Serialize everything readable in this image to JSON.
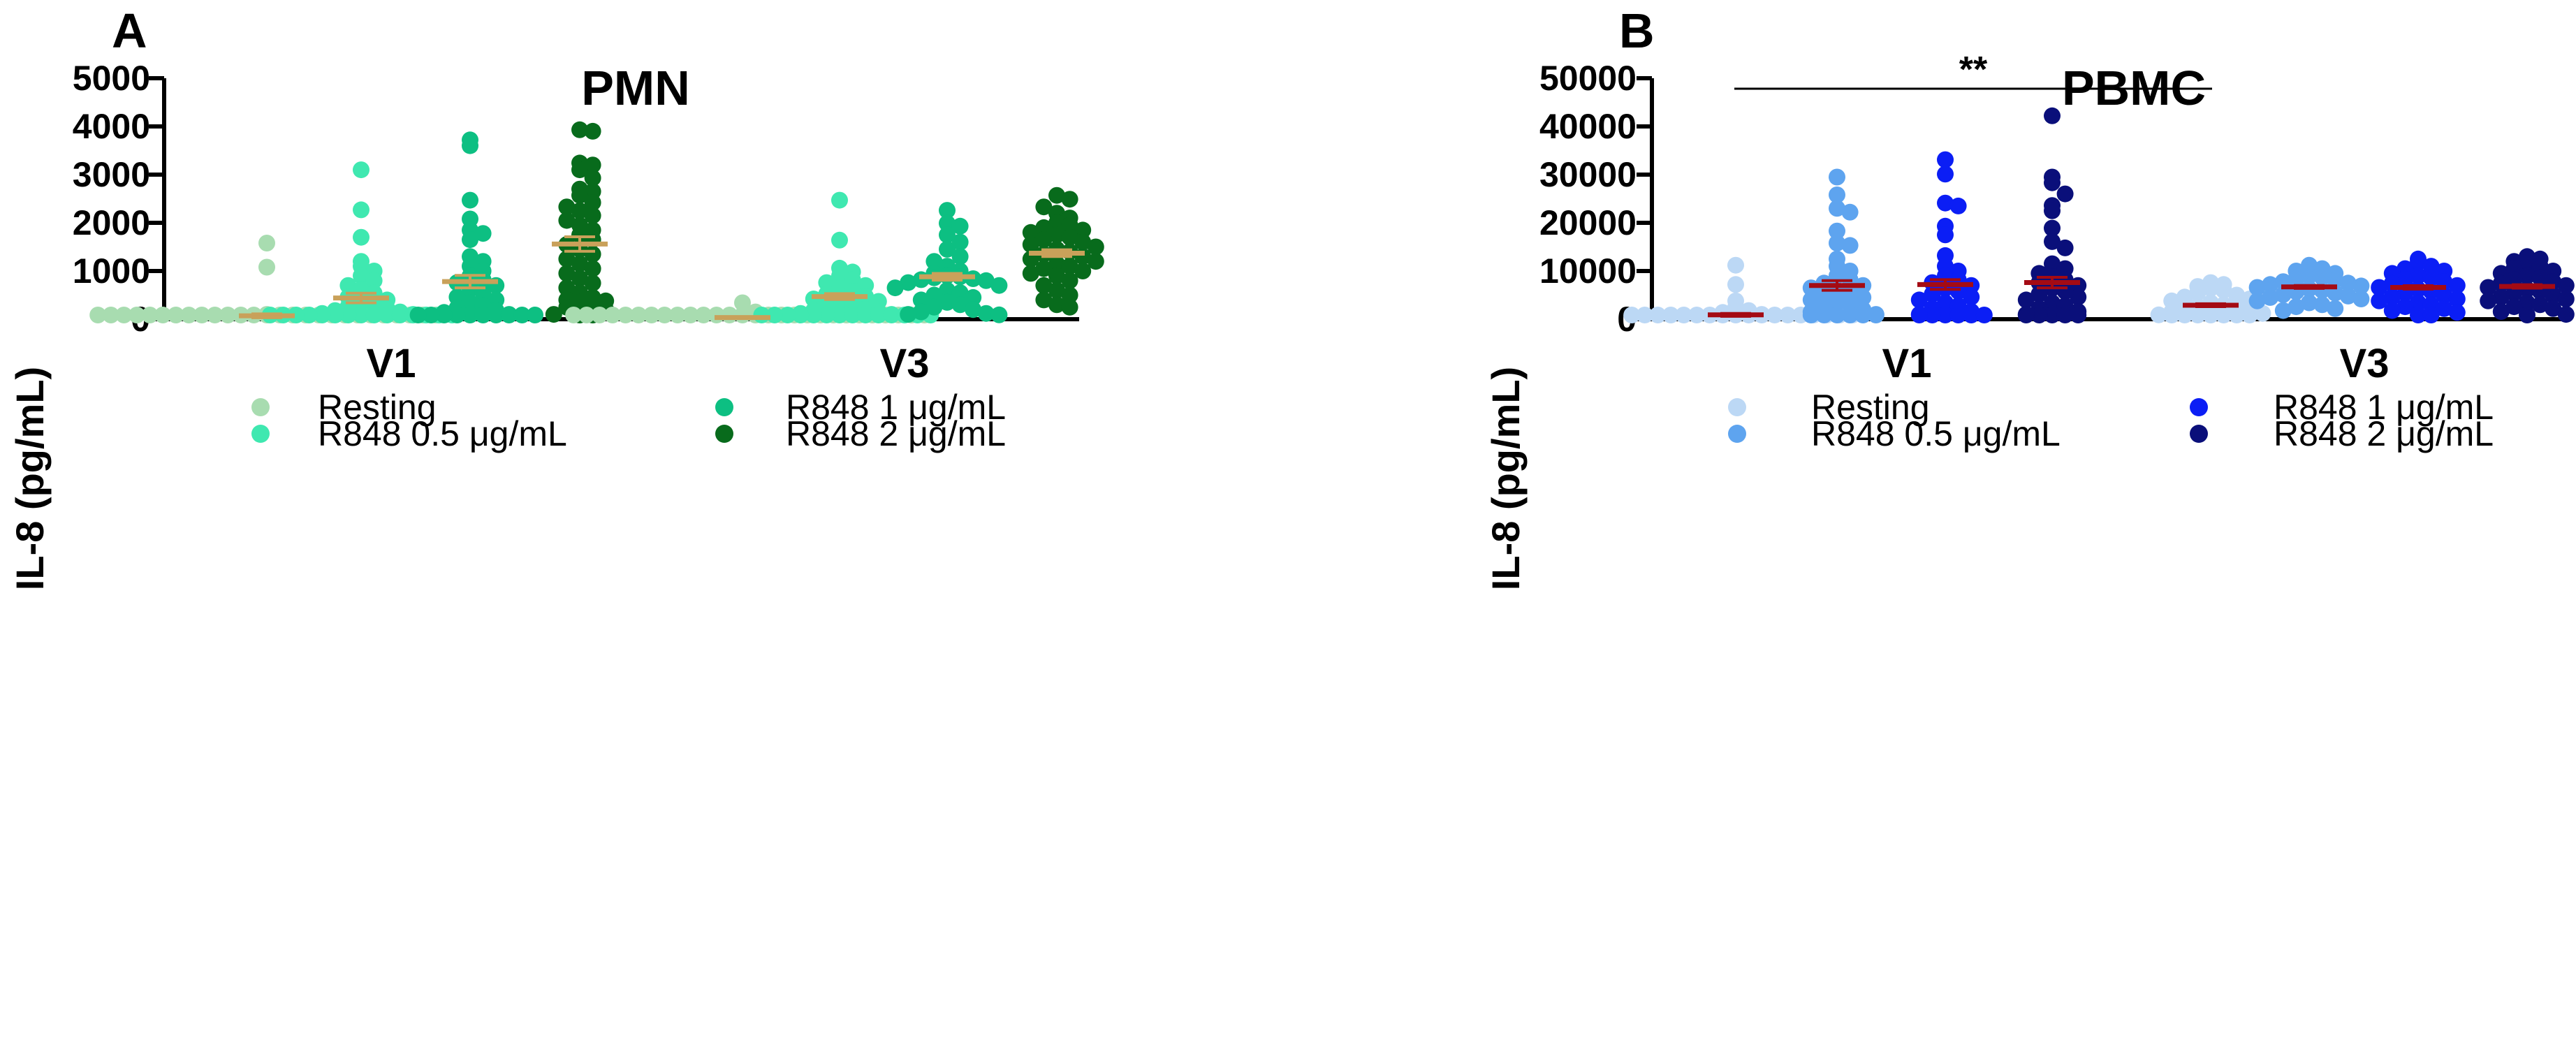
{
  "chart_data": [
    {
      "panel_label": "A",
      "type": "scatter",
      "title": "PMN",
      "ylabel": "IL-8 (pg/mL)",
      "ylim": [
        0,
        5000
      ],
      "yticks": [
        "0",
        "1000",
        "2000",
        "3000",
        "4000",
        "5000"
      ],
      "groups": [
        "V1",
        "V3"
      ],
      "mean_color": "#c9a15a",
      "series": [
        {
          "name": "Resting",
          "color": "#a8dcb0",
          "V1": [
            1580,
            1080,
            100,
            60,
            40,
            30,
            20,
            15,
            10,
            8,
            5,
            5,
            3,
            2,
            1,
            0,
            0,
            0,
            0,
            0,
            0,
            0,
            0,
            0,
            0,
            0,
            0,
            0,
            0,
            0
          ],
          "V3": [
            340,
            150,
            80,
            60,
            40,
            30,
            20,
            15,
            10,
            8,
            5,
            4,
            3,
            2,
            1,
            0,
            0,
            0,
            0,
            0,
            0,
            0,
            0,
            0,
            0,
            0,
            0,
            0,
            0,
            0
          ],
          "mean": {
            "V1": 70,
            "V3": 35
          },
          "sem": {
            "V1": 40,
            "V3": 15
          }
        },
        {
          "name": "R848 0.5 μg/mL",
          "color": "#3fe8b0",
          "V1": [
            3100,
            2270,
            1700,
            1200,
            1100,
            1000,
            900,
            800,
            700,
            620,
            540,
            460,
            400,
            350,
            300,
            260,
            220,
            180,
            150,
            120,
            100,
            80,
            60,
            40,
            30,
            20,
            10,
            5,
            0,
            0,
            0,
            0,
            0,
            0,
            0,
            0
          ],
          "V3": [
            2470,
            1640,
            1060,
            980,
            900,
            820,
            760,
            700,
            640,
            580,
            520,
            470,
            420,
            370,
            330,
            290,
            250,
            210,
            180,
            150,
            120,
            100,
            80,
            60,
            40,
            30,
            20,
            10,
            5,
            0,
            0,
            0,
            0,
            0,
            0,
            0
          ],
          "mean": {
            "V1": 440,
            "V3": 470
          },
          "sem": {
            "V1": 100,
            "V3": 60
          }
        },
        {
          "name": "R848 1 μg/mL",
          "color": "#0dbf82",
          "V1": [
            3720,
            3600,
            2470,
            2080,
            1850,
            1780,
            1650,
            1300,
            1200,
            1100,
            1000,
            900,
            820,
            760,
            700,
            620,
            540,
            460,
            400,
            340,
            280,
            230,
            180,
            140,
            100,
            70,
            40,
            20,
            10,
            0,
            0,
            0,
            0,
            0,
            0
          ],
          "V3": [
            2260,
            1990,
            1930,
            1750,
            1600,
            1450,
            1300,
            1200,
            1100,
            1000,
            950,
            900,
            880,
            860,
            840,
            820,
            800,
            760,
            700,
            650,
            600,
            550,
            500,
            450,
            400,
            350,
            300,
            250,
            200,
            150,
            120,
            100,
            90
          ],
          "mean": {
            "V1": 780,
            "V3": 880
          },
          "sem": {
            "V1": 130,
            "V3": 70
          }
        },
        {
          "name": "R848 2 μg/mL",
          "color": "#086b1c",
          "V1": [
            3930,
            3900,
            3240,
            3200,
            3100,
            2930,
            2700,
            2650,
            2570,
            2420,
            2330,
            2250,
            2150,
            2050,
            1950,
            1850,
            1750,
            1650,
            1550,
            1450,
            1350,
            1250,
            1150,
            1050,
            950,
            850,
            750,
            650,
            550,
            450,
            400,
            380,
            350,
            300,
            250,
            200,
            100,
            50,
            10
          ],
          "V3": [
            2570,
            2490,
            2330,
            2200,
            2100,
            2000,
            1950,
            1900,
            1850,
            1800,
            1750,
            1700,
            1650,
            1600,
            1550,
            1500,
            1450,
            1400,
            1350,
            1300,
            1250,
            1200,
            1150,
            1100,
            1050,
            1000,
            950,
            900,
            800,
            700,
            600,
            500,
            400,
            300,
            250
          ],
          "mean": {
            "V1": 1560,
            "V3": 1370
          },
          "sem": {
            "V1": 150,
            "V3": 70
          }
        }
      ]
    },
    {
      "panel_label": "B",
      "type": "scatter",
      "title": "PBMC",
      "ylabel": "IL-8 (pg/mL)",
      "ylim": [
        0,
        50000
      ],
      "yticks": [
        "0",
        "10000",
        "20000",
        "30000",
        "40000",
        "50000"
      ],
      "groups": [
        "V1",
        "V3"
      ],
      "mean_color": "#a40b14",
      "significance": {
        "label": "**",
        "from": "V1 Resting",
        "to": "V3 Resting"
      },
      "series": [
        {
          "name": "Resting",
          "color": "#bcd8f5",
          "V1": [
            11200,
            7200,
            3800,
            2500,
            1800,
            1400,
            1000,
            800,
            600,
            400,
            300,
            200,
            100,
            50,
            0,
            0,
            0,
            0,
            0,
            0,
            0,
            0,
            0,
            0,
            0
          ],
          "V3": [
            7600,
            7200,
            6800,
            6400,
            6000,
            5500,
            5000,
            4600,
            4200,
            3800,
            3400,
            3000,
            2700,
            2400,
            2100,
            1800,
            1500,
            1200,
            900,
            700,
            500,
            300,
            100,
            0,
            0,
            0
          ],
          "mean": {
            "V1": 900,
            "V3": 2900
          },
          "sem": {
            "V1": 300,
            "V3": 300
          }
        },
        {
          "name": "R848 0.5 μg/mL",
          "color": "#5ea4ef",
          "V1": [
            29500,
            25800,
            23000,
            22200,
            18300,
            15800,
            15300,
            12500,
            11000,
            10000,
            9000,
            8200,
            7500,
            7000,
            6500,
            6000,
            5500,
            5000,
            4500,
            4000,
            3500,
            3000,
            2500,
            2000,
            1500,
            1000,
            500,
            200,
            0,
            0,
            0,
            0
          ],
          "V3": [
            11200,
            10500,
            10000,
            9500,
            9000,
            8700,
            8400,
            8100,
            7800,
            7500,
            7200,
            6900,
            6600,
            6300,
            6000,
            5700,
            5400,
            5100,
            4800,
            4500,
            4200,
            3800,
            3400,
            3000,
            2600,
            2200,
            1800
          ],
          "mean": {
            "V1": 7000,
            "V3": 6700
          },
          "sem": {
            "V1": 1000,
            "V3": 300
          }
        },
        {
          "name": "R848 1 μg/mL",
          "color": "#0b1ef5",
          "V1": [
            33100,
            30100,
            24100,
            23500,
            19300,
            17500,
            13200,
            11000,
            10000,
            9000,
            8200,
            7600,
            7000,
            6400,
            5800,
            5200,
            4600,
            4000,
            3400,
            2800,
            2200,
            1600,
            1000,
            500,
            0,
            0,
            0,
            0,
            0
          ],
          "V3": [
            12500,
            11800,
            11000,
            10500,
            10000,
            9500,
            9000,
            8600,
            8200,
            7800,
            7400,
            7000,
            6600,
            6200,
            5800,
            5400,
            5000,
            4600,
            4200,
            3800,
            3400,
            3000,
            2600,
            2200,
            1800,
            1400,
            800,
            0
          ],
          "mean": {
            "V1": 7200,
            "V3": 6600
          },
          "sem": {
            "V1": 1000,
            "V3": 350
          }
        },
        {
          "name": "R848 2 μg/mL",
          "color": "#0a0f7a",
          "V1": [
            42200,
            29500,
            28300,
            26000,
            23600,
            22500,
            18900,
            16100,
            14800,
            11500,
            10500,
            9500,
            8800,
            8200,
            7600,
            7000,
            6400,
            5800,
            5200,
            4600,
            4000,
            3400,
            2800,
            2200,
            1600,
            1000,
            500,
            0,
            0,
            0,
            0
          ],
          "V3": [
            13000,
            12500,
            12000,
            11500,
            11000,
            10500,
            10000,
            9500,
            9000,
            8600,
            8200,
            7800,
            7400,
            7000,
            6600,
            6200,
            5800,
            5400,
            5000,
            4600,
            4200,
            3800,
            3400,
            3000,
            2600,
            2200,
            1600,
            1000,
            0
          ],
          "mean": {
            "V1": 7600,
            "V3": 6800
          },
          "sem": {
            "V1": 1100,
            "V3": 350
          }
        }
      ]
    }
  ]
}
